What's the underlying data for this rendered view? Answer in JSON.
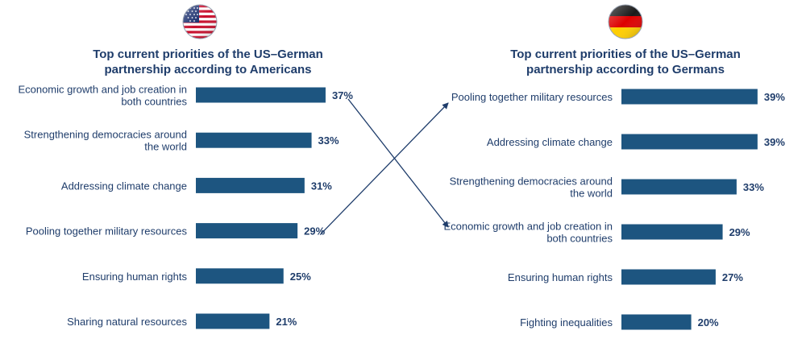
{
  "colors": {
    "bar": "#1d5580",
    "text": "#1f3d6b",
    "arrow": "#1f3d6b"
  },
  "flags": {
    "left": "us-flag",
    "right": "germany-flag"
  },
  "chart_data": [
    {
      "type": "bar",
      "orientation": "horizontal",
      "title": [
        "Top current priorities of the US–German",
        "partnership according to Americans"
      ],
      "categories": [
        [
          "Economic growth and job creation in",
          "both countries"
        ],
        [
          "Strengthening democracies around",
          "the world"
        ],
        [
          "Addressing climate change"
        ],
        [
          "Pooling together military resources"
        ],
        [
          "Ensuring human rights"
        ],
        [
          "Sharing natural resources"
        ]
      ],
      "values": [
        37,
        33,
        31,
        29,
        25,
        21
      ],
      "value_labels": [
        "37%",
        "33%",
        "31%",
        "29%",
        "25%",
        "21%"
      ],
      "unit": "%",
      "grid": false
    },
    {
      "type": "bar",
      "orientation": "horizontal",
      "title": [
        "Top current priorities of the US–German",
        "partnership according to Germans"
      ],
      "categories": [
        [
          "Pooling together military resources"
        ],
        [
          "Addressing climate change"
        ],
        [
          "Strengthening democracies around",
          "the world"
        ],
        [
          "Economic growth and job creation in",
          "both countries"
        ],
        [
          "Ensuring human rights"
        ],
        [
          "Fighting inequalities"
        ]
      ],
      "values": [
        39,
        39,
        33,
        29,
        27,
        20
      ],
      "value_labels": [
        "39%",
        "39%",
        "33%",
        "29%",
        "27%",
        "20%"
      ],
      "unit": "%",
      "grid": false
    }
  ],
  "arrows": [
    {
      "from": "Economic growth and job creation in both countries",
      "to": "Economic growth and job creation in both countries"
    },
    {
      "from": "Pooling together military resources",
      "to": "Pooling together military resources"
    }
  ]
}
